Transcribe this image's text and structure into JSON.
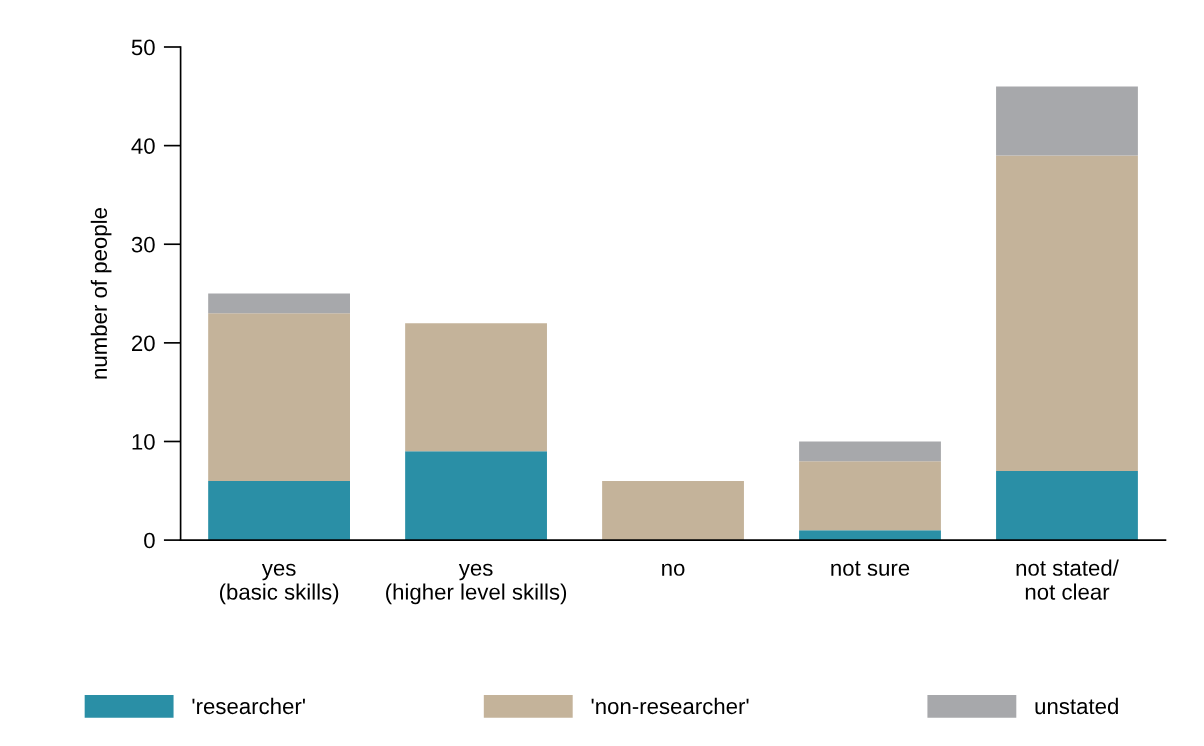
{
  "chart_data": {
    "type": "bar",
    "stacked": true,
    "ylabel": "number of people",
    "categories": [
      "yes\n(basic skills)",
      "yes\n(higher level skills)",
      "no",
      "not sure",
      "not stated/\nnot clear"
    ],
    "series": [
      {
        "name": "'researcher'",
        "color": "#2a8fa6",
        "values": [
          6,
          9,
          0,
          1,
          7
        ]
      },
      {
        "name": "'non-researcher'",
        "color": "#c4b39a",
        "values": [
          17,
          13,
          6,
          7,
          32
        ]
      },
      {
        "name": "unstated",
        "color": "#a7a8ab",
        "values": [
          2,
          0,
          0,
          2,
          7
        ]
      }
    ],
    "ylim": [
      0,
      50
    ],
    "yticks": [
      0,
      10,
      20,
      30,
      40,
      50
    ],
    "grid": false,
    "legend": "bottom"
  }
}
